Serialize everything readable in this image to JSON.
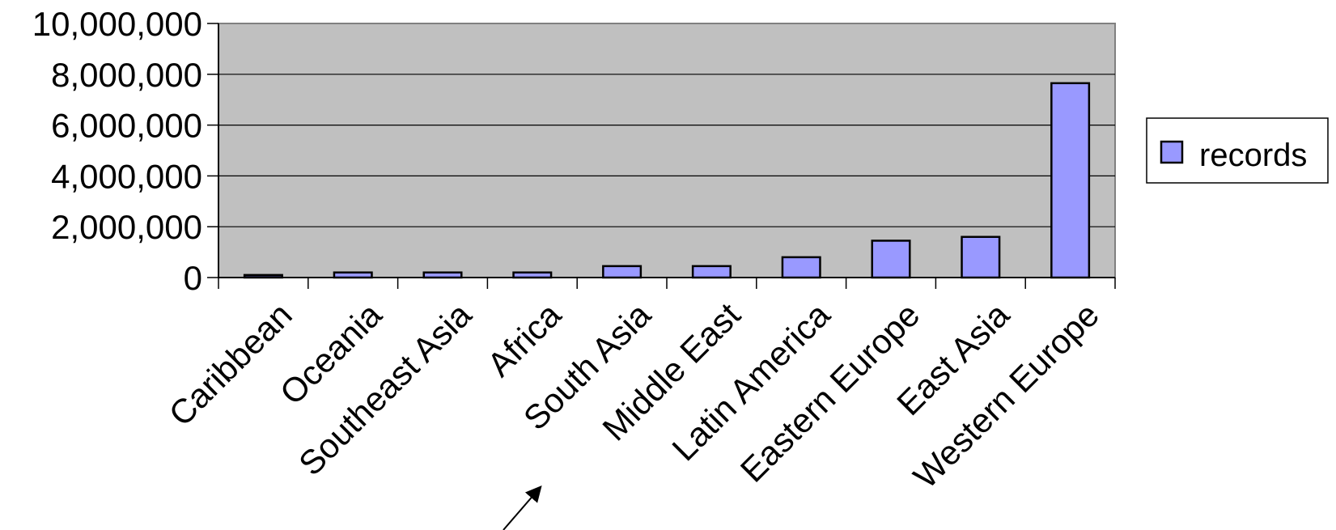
{
  "chart_data": {
    "type": "bar",
    "categories": [
      "Caribbean",
      "Oceania",
      "Southeast Asia",
      "Africa",
      "South Asia",
      "Middle East",
      "Latin America",
      "Eastern Europe",
      "East Asia",
      "Western Europe"
    ],
    "series": [
      {
        "name": "records",
        "values": [
          100000,
          200000,
          200000,
          200000,
          450000,
          450000,
          800000,
          1450000,
          1600000,
          7650000
        ]
      }
    ],
    "ylim": [
      0,
      10000000
    ],
    "yticks": [
      0,
      2000000,
      4000000,
      6000000,
      8000000,
      10000000
    ],
    "ytick_labels": [
      "0",
      "2,000,000",
      "4,000,000",
      "6,000,000",
      "8,000,000",
      "10,000,000"
    ],
    "grid": true,
    "legend_position": "right",
    "colors": {
      "plot_background": "#c0c0c0",
      "bar_fill": "#9999ff",
      "bar_fill_first": "#333366",
      "gridline": "#000000"
    },
    "annotations": [
      {
        "type": "arrow",
        "target": "Middle East"
      }
    ]
  }
}
